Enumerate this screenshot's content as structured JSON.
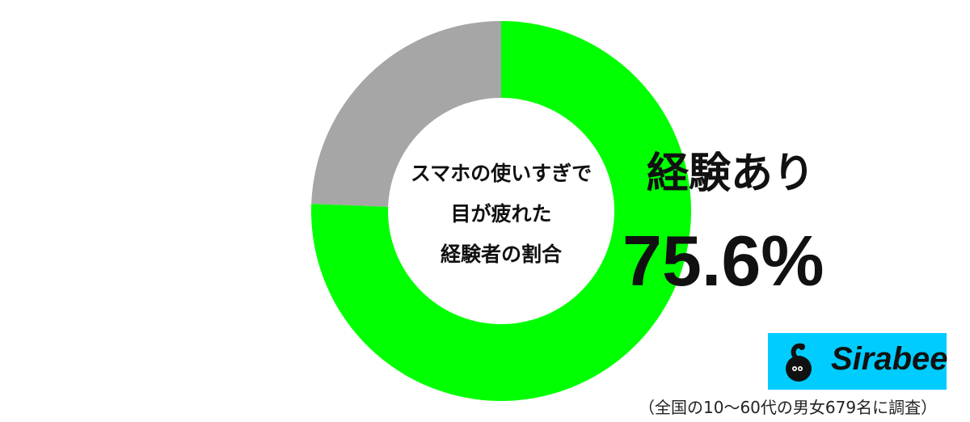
{
  "chart_data": {
    "type": "pie",
    "donut": true,
    "center_title_lines": [
      "スマホの使いすぎで",
      "目が疲れた",
      "経験者の割合"
    ],
    "slices": [
      {
        "label": "経験あり",
        "value": 75.6,
        "color": "#00ff00"
      },
      {
        "value": 24.4,
        "color": "#a6a6a6"
      }
    ],
    "highlight": {
      "label": "経験あり",
      "value_text": "75.6%"
    },
    "start_angle": "top",
    "direction": "clockwise"
  },
  "logo": {
    "text": "Sirabee",
    "color": "#00ccff"
  },
  "footnote": "（全国の10〜60代の男女679名に調査）"
}
